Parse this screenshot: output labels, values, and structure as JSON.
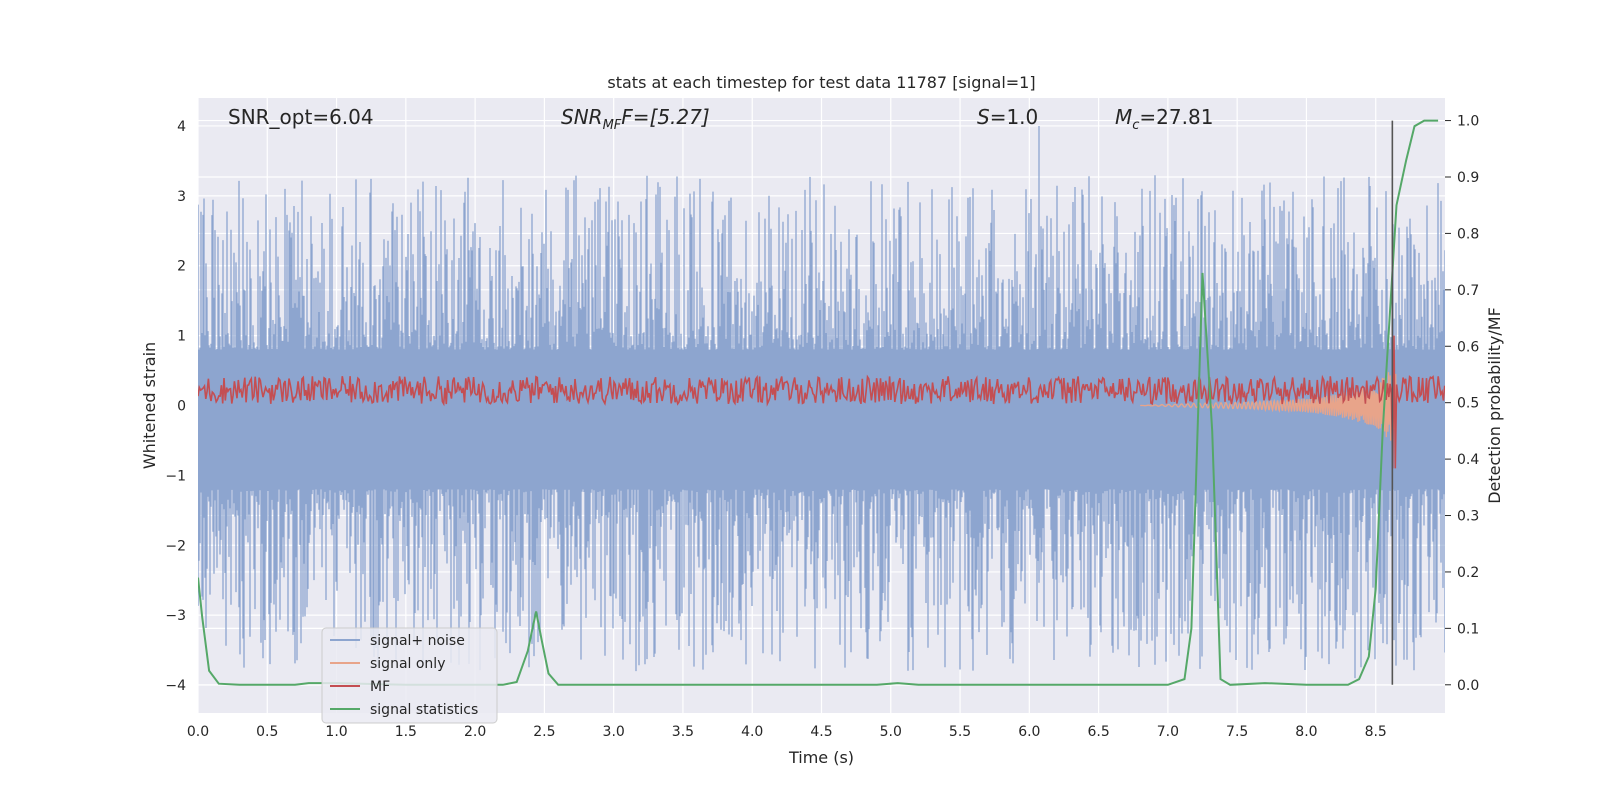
{
  "chart_data": {
    "type": "line",
    "title": "stats at each timestep for test data 11787 [signal=1]",
    "xlabel": "Time (s)",
    "ylabel": "Whitened strain",
    "ylabel_right": "Detection probability/MF",
    "xlim": [
      0.0,
      9.0
    ],
    "ylim": [
      -4.4,
      4.4
    ],
    "ylim_right": [
      -0.05,
      1.04
    ],
    "x_ticks": [
      "0.0",
      "0.5",
      "1.0",
      "1.5",
      "2.0",
      "2.5",
      "3.0",
      "3.5",
      "4.0",
      "4.5",
      "5.0",
      "5.5",
      "6.0",
      "6.5",
      "7.0",
      "7.5",
      "8.0",
      "8.5"
    ],
    "y_ticks": [
      "−4",
      "−3",
      "−2",
      "−1",
      "0",
      "1",
      "2",
      "3",
      "4"
    ],
    "y_ticks_right": [
      "0.0",
      "0.1",
      "0.2",
      "0.3",
      "0.4",
      "0.5",
      "0.6",
      "0.7",
      "0.8",
      "0.9",
      "1.0"
    ],
    "grid": true,
    "legend_position": "lower-left",
    "annotations": {
      "snr_opt": "SNR_opt=6.04",
      "snr_mf_main": "SNR",
      "snr_mf_sub": "MF",
      "snr_mf_rest": "F=[5.27]",
      "s_main": "S",
      "s_rest": "=1.0",
      "mc_main": "M",
      "mc_sub": "c",
      "mc_rest": "=27.81"
    },
    "marker_time": 8.62,
    "colors": {
      "noise": "#8da5cf",
      "signal_only": "#e8a48a",
      "mf": "#c44e52",
      "stat": "#55a868",
      "vline": "#555555",
      "background": "#eaeaf2"
    },
    "series": [
      {
        "name": "signal+ noise",
        "axis": "left",
        "style": "noise band",
        "positive_envelope_range": [
          0.8,
          3.3
        ],
        "negative_envelope_range": [
          -3.8,
          -1.2
        ],
        "spikes": [
          {
            "x": 0.52,
            "y": -3.7
          },
          {
            "x": 0.63,
            "y": -3.3
          },
          {
            "x": 0.63,
            "y": 3.1
          },
          {
            "x": 0.98,
            "y": -3.3
          },
          {
            "x": 2.04,
            "y": -3.0
          },
          {
            "x": 4.84,
            "y": -3.2
          },
          {
            "x": 6.07,
            "y": 4.0
          },
          {
            "x": 8.35,
            "y": -3.9
          },
          {
            "x": 8.55,
            "y": -3.4
          }
        ]
      },
      {
        "name": "signal only",
        "axis": "left",
        "x": [
          6.8,
          7.2,
          7.6,
          8.0,
          8.2,
          8.4,
          8.5,
          8.55,
          8.6,
          8.65
        ],
        "amplitude": [
          0.0,
          0.03,
          0.05,
          0.1,
          0.15,
          0.25,
          0.3,
          0.4,
          0.5,
          0.6
        ]
      },
      {
        "name": "MF",
        "axis": "left",
        "baseline": 0.2,
        "noise_amplitude": 0.25,
        "peak": {
          "x": 8.63,
          "y": 1.0,
          "min": -0.9
        }
      },
      {
        "name": "signal statistics",
        "axis": "right",
        "x": [
          0.0,
          0.03,
          0.08,
          0.15,
          0.3,
          0.7,
          0.8,
          1.0,
          1.5,
          2.0,
          2.2,
          2.3,
          2.38,
          2.44,
          2.48,
          2.53,
          2.6,
          3.0,
          4.0,
          4.9,
          5.05,
          5.2,
          6.0,
          7.0,
          7.12,
          7.17,
          7.25,
          7.32,
          7.38,
          7.45,
          7.7,
          8.0,
          8.3,
          8.38,
          8.45,
          8.5,
          8.55,
          8.6,
          8.65,
          8.72,
          8.78,
          8.85,
          8.95
        ],
        "values": [
          0.19,
          0.12,
          0.025,
          0.002,
          0.0,
          0.0,
          0.003,
          0.003,
          0.0,
          0.0,
          0.0,
          0.005,
          0.06,
          0.13,
          0.08,
          0.02,
          0.0,
          0.0,
          0.0,
          0.0,
          0.003,
          0.0,
          0.0,
          0.0,
          0.01,
          0.1,
          0.73,
          0.45,
          0.01,
          0.0,
          0.003,
          0.0,
          0.0,
          0.01,
          0.05,
          0.17,
          0.45,
          0.65,
          0.85,
          0.93,
          0.99,
          1.0,
          1.0
        ]
      }
    ]
  }
}
